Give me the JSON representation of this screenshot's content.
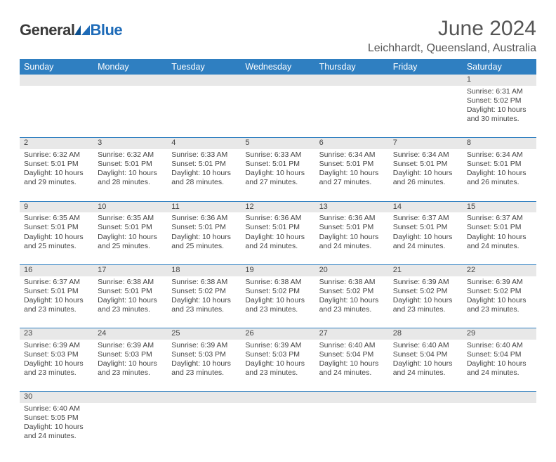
{
  "brand": {
    "part1": "General",
    "part2": "Blue"
  },
  "title": "June 2024",
  "location": "Leichhardt, Queensland, Australia",
  "colors": {
    "header_bg": "#2f7fc1",
    "header_text": "#ffffff",
    "daynum_bg": "#e8e8e8",
    "border": "#2f7fc1",
    "text": "#444444",
    "logo_blue": "#1e6bb8"
  },
  "day_headers": [
    "Sunday",
    "Monday",
    "Tuesday",
    "Wednesday",
    "Thursday",
    "Friday",
    "Saturday"
  ],
  "weeks": [
    {
      "nums": [
        "",
        "",
        "",
        "",
        "",
        "",
        "1"
      ],
      "cells": [
        null,
        null,
        null,
        null,
        null,
        null,
        {
          "sunrise": "Sunrise: 6:31 AM",
          "sunset": "Sunset: 5:02 PM",
          "d1": "Daylight: 10 hours",
          "d2": "and 30 minutes."
        }
      ]
    },
    {
      "nums": [
        "2",
        "3",
        "4",
        "5",
        "6",
        "7",
        "8"
      ],
      "cells": [
        {
          "sunrise": "Sunrise: 6:32 AM",
          "sunset": "Sunset: 5:01 PM",
          "d1": "Daylight: 10 hours",
          "d2": "and 29 minutes."
        },
        {
          "sunrise": "Sunrise: 6:32 AM",
          "sunset": "Sunset: 5:01 PM",
          "d1": "Daylight: 10 hours",
          "d2": "and 28 minutes."
        },
        {
          "sunrise": "Sunrise: 6:33 AM",
          "sunset": "Sunset: 5:01 PM",
          "d1": "Daylight: 10 hours",
          "d2": "and 28 minutes."
        },
        {
          "sunrise": "Sunrise: 6:33 AM",
          "sunset": "Sunset: 5:01 PM",
          "d1": "Daylight: 10 hours",
          "d2": "and 27 minutes."
        },
        {
          "sunrise": "Sunrise: 6:34 AM",
          "sunset": "Sunset: 5:01 PM",
          "d1": "Daylight: 10 hours",
          "d2": "and 27 minutes."
        },
        {
          "sunrise": "Sunrise: 6:34 AM",
          "sunset": "Sunset: 5:01 PM",
          "d1": "Daylight: 10 hours",
          "d2": "and 26 minutes."
        },
        {
          "sunrise": "Sunrise: 6:34 AM",
          "sunset": "Sunset: 5:01 PM",
          "d1": "Daylight: 10 hours",
          "d2": "and 26 minutes."
        }
      ]
    },
    {
      "nums": [
        "9",
        "10",
        "11",
        "12",
        "13",
        "14",
        "15"
      ],
      "cells": [
        {
          "sunrise": "Sunrise: 6:35 AM",
          "sunset": "Sunset: 5:01 PM",
          "d1": "Daylight: 10 hours",
          "d2": "and 25 minutes."
        },
        {
          "sunrise": "Sunrise: 6:35 AM",
          "sunset": "Sunset: 5:01 PM",
          "d1": "Daylight: 10 hours",
          "d2": "and 25 minutes."
        },
        {
          "sunrise": "Sunrise: 6:36 AM",
          "sunset": "Sunset: 5:01 PM",
          "d1": "Daylight: 10 hours",
          "d2": "and 25 minutes."
        },
        {
          "sunrise": "Sunrise: 6:36 AM",
          "sunset": "Sunset: 5:01 PM",
          "d1": "Daylight: 10 hours",
          "d2": "and 24 minutes."
        },
        {
          "sunrise": "Sunrise: 6:36 AM",
          "sunset": "Sunset: 5:01 PM",
          "d1": "Daylight: 10 hours",
          "d2": "and 24 minutes."
        },
        {
          "sunrise": "Sunrise: 6:37 AM",
          "sunset": "Sunset: 5:01 PM",
          "d1": "Daylight: 10 hours",
          "d2": "and 24 minutes."
        },
        {
          "sunrise": "Sunrise: 6:37 AM",
          "sunset": "Sunset: 5:01 PM",
          "d1": "Daylight: 10 hours",
          "d2": "and 24 minutes."
        }
      ]
    },
    {
      "nums": [
        "16",
        "17",
        "18",
        "19",
        "20",
        "21",
        "22"
      ],
      "cells": [
        {
          "sunrise": "Sunrise: 6:37 AM",
          "sunset": "Sunset: 5:01 PM",
          "d1": "Daylight: 10 hours",
          "d2": "and 23 minutes."
        },
        {
          "sunrise": "Sunrise: 6:38 AM",
          "sunset": "Sunset: 5:01 PM",
          "d1": "Daylight: 10 hours",
          "d2": "and 23 minutes."
        },
        {
          "sunrise": "Sunrise: 6:38 AM",
          "sunset": "Sunset: 5:02 PM",
          "d1": "Daylight: 10 hours",
          "d2": "and 23 minutes."
        },
        {
          "sunrise": "Sunrise: 6:38 AM",
          "sunset": "Sunset: 5:02 PM",
          "d1": "Daylight: 10 hours",
          "d2": "and 23 minutes."
        },
        {
          "sunrise": "Sunrise: 6:38 AM",
          "sunset": "Sunset: 5:02 PM",
          "d1": "Daylight: 10 hours",
          "d2": "and 23 minutes."
        },
        {
          "sunrise": "Sunrise: 6:39 AM",
          "sunset": "Sunset: 5:02 PM",
          "d1": "Daylight: 10 hours",
          "d2": "and 23 minutes."
        },
        {
          "sunrise": "Sunrise: 6:39 AM",
          "sunset": "Sunset: 5:02 PM",
          "d1": "Daylight: 10 hours",
          "d2": "and 23 minutes."
        }
      ]
    },
    {
      "nums": [
        "23",
        "24",
        "25",
        "26",
        "27",
        "28",
        "29"
      ],
      "cells": [
        {
          "sunrise": "Sunrise: 6:39 AM",
          "sunset": "Sunset: 5:03 PM",
          "d1": "Daylight: 10 hours",
          "d2": "and 23 minutes."
        },
        {
          "sunrise": "Sunrise: 6:39 AM",
          "sunset": "Sunset: 5:03 PM",
          "d1": "Daylight: 10 hours",
          "d2": "and 23 minutes."
        },
        {
          "sunrise": "Sunrise: 6:39 AM",
          "sunset": "Sunset: 5:03 PM",
          "d1": "Daylight: 10 hours",
          "d2": "and 23 minutes."
        },
        {
          "sunrise": "Sunrise: 6:39 AM",
          "sunset": "Sunset: 5:03 PM",
          "d1": "Daylight: 10 hours",
          "d2": "and 23 minutes."
        },
        {
          "sunrise": "Sunrise: 6:40 AM",
          "sunset": "Sunset: 5:04 PM",
          "d1": "Daylight: 10 hours",
          "d2": "and 24 minutes."
        },
        {
          "sunrise": "Sunrise: 6:40 AM",
          "sunset": "Sunset: 5:04 PM",
          "d1": "Daylight: 10 hours",
          "d2": "and 24 minutes."
        },
        {
          "sunrise": "Sunrise: 6:40 AM",
          "sunset": "Sunset: 5:04 PM",
          "d1": "Daylight: 10 hours",
          "d2": "and 24 minutes."
        }
      ]
    },
    {
      "nums": [
        "30",
        "",
        "",
        "",
        "",
        "",
        ""
      ],
      "cells": [
        {
          "sunrise": "Sunrise: 6:40 AM",
          "sunset": "Sunset: 5:05 PM",
          "d1": "Daylight: 10 hours",
          "d2": "and 24 minutes."
        },
        null,
        null,
        null,
        null,
        null,
        null
      ]
    }
  ]
}
